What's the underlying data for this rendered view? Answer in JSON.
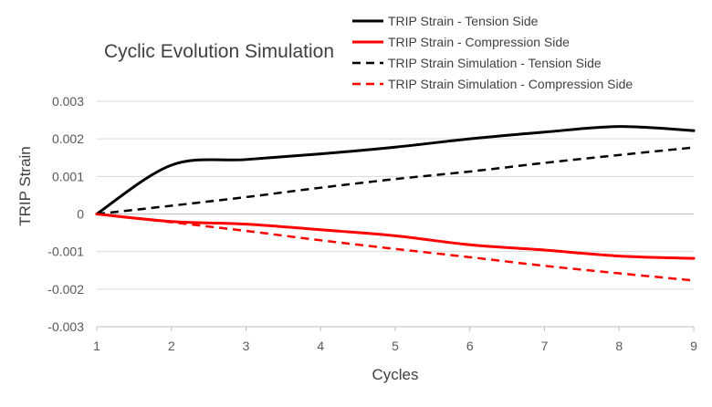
{
  "chart_data": {
    "type": "line",
    "title": "Cyclic Evolution Simulation",
    "xlabel": "Cycles",
    "ylabel": "TRIP Strain",
    "xlim": [
      1,
      9
    ],
    "ylim": [
      -0.003,
      0.003
    ],
    "x_ticks": [
      1,
      2,
      3,
      4,
      5,
      6,
      7,
      8,
      9
    ],
    "x_tick_labels": [
      "1",
      "2",
      "3",
      "4",
      "5",
      "6",
      "7",
      "8",
      "9"
    ],
    "y_ticks": [
      0.003,
      0.002,
      0.001,
      0,
      -0.001,
      -0.002,
      -0.003
    ],
    "y_tick_labels": [
      "0.003",
      "0.002",
      "0.001",
      "0",
      "-0.001",
      "-0.002",
      "-0.003"
    ],
    "grid": "horizontal",
    "legend_position": "top-right",
    "x": [
      1,
      2,
      3,
      4,
      5,
      6,
      7,
      8,
      9
    ],
    "series": [
      {
        "name": "TRIP Strain - Tension Side",
        "color": "#000000",
        "dash": "solid",
        "values": [
          0,
          0.0013,
          0.00145,
          0.0016,
          0.00178,
          0.002,
          0.00218,
          0.00233,
          0.00222
        ]
      },
      {
        "name": "TRIP Strain - Compression Side",
        "color": "#ff0000",
        "dash": "solid",
        "values": [
          0,
          -0.0002,
          -0.00027,
          -0.00042,
          -0.00058,
          -0.00082,
          -0.00096,
          -0.00112,
          -0.00118
        ]
      },
      {
        "name": "TRIP Strain Simulation - Tension Side",
        "color": "#000000",
        "dash": "dashed",
        "values": [
          0,
          0.00022,
          0.00045,
          0.0007,
          0.00093,
          0.00113,
          0.00136,
          0.00157,
          0.00177
        ]
      },
      {
        "name": "TRIP Strain Simulation - Compression Side",
        "color": "#ff0000",
        "dash": "dashed",
        "values": [
          0,
          -0.00022,
          -0.00045,
          -0.0007,
          -0.00093,
          -0.00115,
          -0.00138,
          -0.00158,
          -0.00177
        ]
      }
    ]
  }
}
